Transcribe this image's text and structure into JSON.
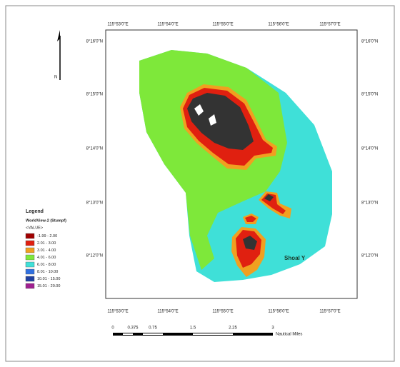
{
  "map": {
    "top_ticks": [
      "115°53'0\"E",
      "115°54'0\"E",
      "115°55'0\"E",
      "115°56'0\"E",
      "115°57'0\"E"
    ],
    "bottom_ticks": [
      "115°53'0\"E",
      "115°54'0\"E",
      "115°55'0\"E",
      "115°56'0\"E",
      "115°57'0\"E"
    ],
    "left_ticks": [
      "8°16'0\"N",
      "8°15'0\"N",
      "8°14'0\"N",
      "8°13'0\"N",
      "8°12'0\"N"
    ],
    "right_ticks": [
      "8°16'0\"N",
      "8°15'0\"N",
      "8°14'0\"N",
      "8°13'0\"N",
      "8°12'0\"N"
    ],
    "north": "N",
    "feature_label": "Shoal Y"
  },
  "legend": {
    "title": "Legend",
    "layer": "WorldView-2 (Stumpf)",
    "field": "<VALUE>",
    "classes": [
      "-1.99 - 2.00",
      "2.01 - 3.00",
      "3.01 - 4.00",
      "4.01 - 6.00",
      "6.01 - 8.00",
      "8.01 - 10.00",
      "10.01 - 15.00",
      "15.01 - 20.00"
    ]
  },
  "scale_bar": {
    "labels": [
      "0",
      "0.375",
      "0.75",
      "1.5",
      "2.25",
      "3"
    ],
    "unit": "Nautical Miles"
  }
}
